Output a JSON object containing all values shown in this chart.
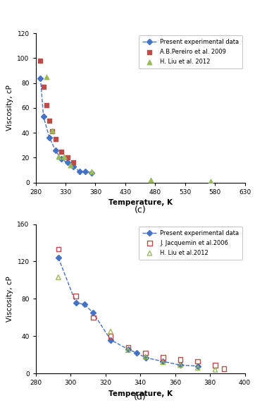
{
  "chart_c": {
    "title": "(c)",
    "xlabel": "Temperature, K",
    "ylabel": "Viscosity, cP",
    "xlim": [
      280,
      630
    ],
    "ylim": [
      0,
      120
    ],
    "xticks": [
      280,
      330,
      380,
      430,
      480,
      530,
      580,
      630
    ],
    "yticks": [
      0,
      20,
      40,
      60,
      80,
      100,
      120
    ],
    "present_T": [
      288,
      293,
      303,
      313,
      323,
      333,
      343,
      353,
      363,
      373
    ],
    "present_V": [
      84,
      53,
      36,
      26,
      19,
      16,
      13,
      9,
      9,
      8
    ],
    "pereiro_T": [
      288,
      293,
      298,
      303,
      308,
      313,
      323,
      333,
      343
    ],
    "pereiro_V": [
      98,
      77,
      62,
      50,
      41,
      35,
      25,
      20,
      16
    ],
    "liu_T": [
      298,
      308,
      318,
      328,
      338,
      373,
      473,
      573
    ],
    "liu_V": [
      85,
      42,
      21,
      21,
      14,
      9,
      2,
      1
    ],
    "present_color": "#4472C4",
    "pereiro_color": "#BE4B48",
    "liu_color": "#9BBB59",
    "line_color": "#4472C4",
    "legend_label_present": "Present experimental data",
    "legend_label_pereiro": "A.B.Pereiro et al. 2009",
    "legend_label_liu": "H. Liu et al. 2012"
  },
  "chart_d": {
    "title": "(d)",
    "xlabel": "Temperature, K",
    "ylabel": "Viscosity, cP",
    "xlim": [
      280,
      400
    ],
    "ylim": [
      0,
      160
    ],
    "xticks": [
      280,
      300,
      320,
      340,
      360,
      380,
      400
    ],
    "yticks": [
      0,
      40,
      80,
      120,
      160
    ],
    "present_T": [
      293,
      303,
      308,
      313,
      323,
      333,
      338,
      343,
      353,
      363,
      373
    ],
    "present_V": [
      124,
      76,
      74,
      65,
      36,
      26,
      22,
      17,
      13,
      9,
      8
    ],
    "jacquemin_T": [
      293,
      303,
      313,
      323,
      333,
      343,
      353,
      363,
      373,
      383,
      388
    ],
    "jacquemin_V": [
      133,
      83,
      60,
      40,
      28,
      22,
      17,
      15,
      13,
      9,
      5
    ],
    "liu_T": [
      293,
      323,
      333,
      343,
      353,
      363,
      373,
      383
    ],
    "liu_V": [
      103,
      45,
      25,
      18,
      12,
      9,
      6,
      4
    ],
    "present_color": "#4472C4",
    "jacquemin_color": "#BE4B48",
    "liu_color": "#9BBB59",
    "line_color": "#4472C4",
    "legend_label_present": "Present experimental data",
    "legend_label_jacquemin": "J. Jacquemin et al.2006",
    "legend_label_liu": "H. Liu et al.2012"
  },
  "fig_width": 3.62,
  "fig_height": 5.88,
  "dpi": 100
}
